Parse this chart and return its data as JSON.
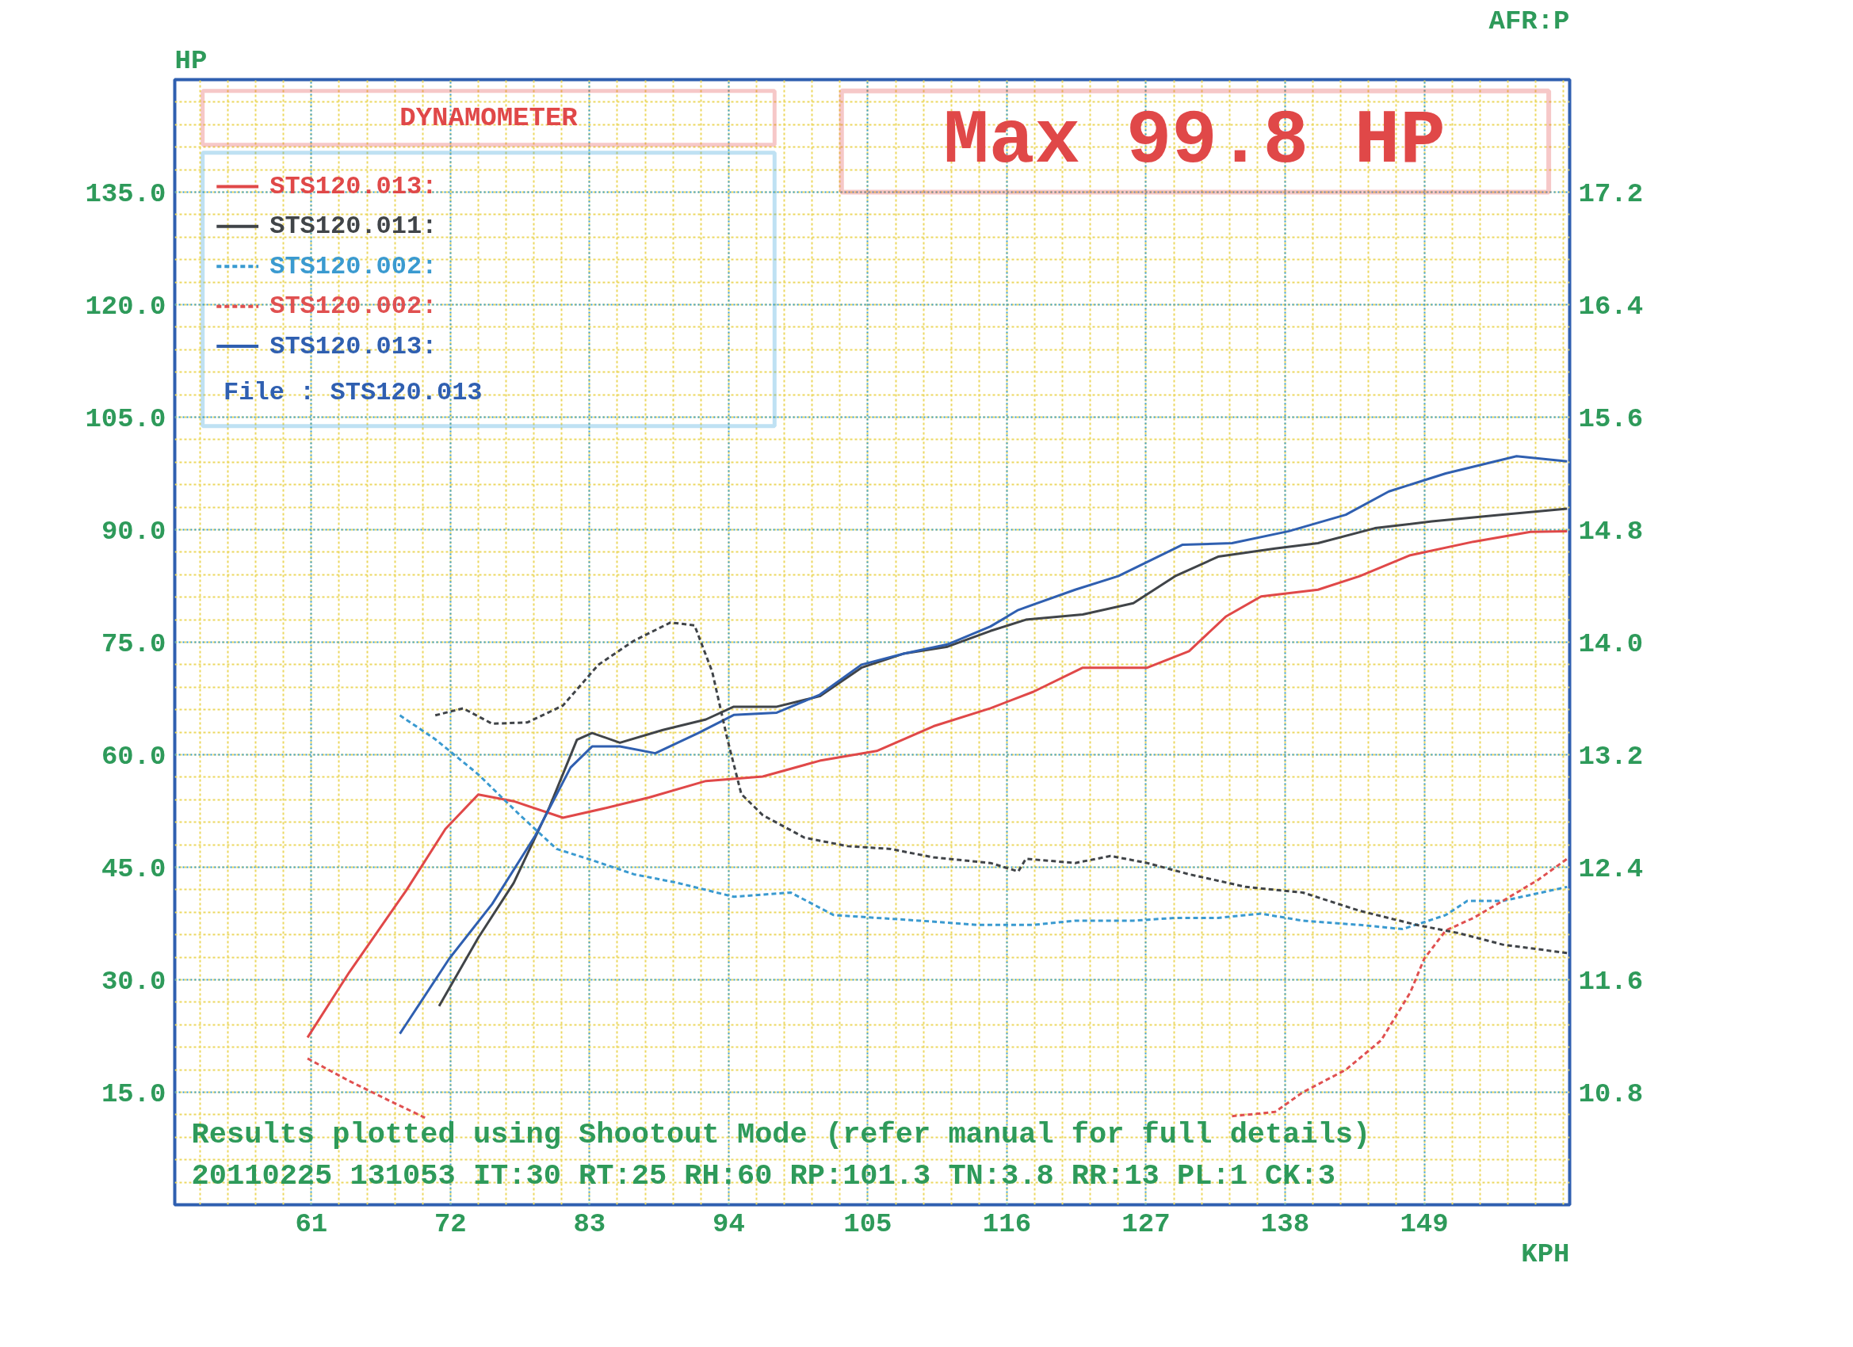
{
  "chart_data": {
    "type": "line",
    "title": "DYNAMOMETER",
    "xlabel": "KPH",
    "ylabel": "HP",
    "y2label": "AFR:P",
    "xlim": [
      50.2,
      160.5
    ],
    "ylim": [
      0,
      150
    ],
    "y2lim": [
      10.0,
      18.0
    ],
    "xticks": [
      61,
      72,
      83,
      94,
      105,
      116,
      127,
      138,
      149
    ],
    "yticks": [
      {
        "value": 15,
        "label": "15.0"
      },
      {
        "value": 30,
        "label": "30.0"
      },
      {
        "value": 45,
        "label": "45.0"
      },
      {
        "value": 60,
        "label": "60.0"
      },
      {
        "value": 75,
        "label": "75.0"
      },
      {
        "value": 90,
        "label": "90.0"
      },
      {
        "value": 105,
        "label": "105.0"
      },
      {
        "value": 120,
        "label": "120.0"
      },
      {
        "value": 135,
        "label": "135.0"
      }
    ],
    "y2ticks": [
      10.8,
      11.6,
      12.4,
      13.2,
      {
        "value": 14.0,
        "label": "14.0"
      },
      14.8,
      15.6,
      16.4,
      17.2
    ],
    "grid": true,
    "legend": "top left",
    "annotations": [
      "Max 99.8 HP",
      "File       : STS120.013",
      "Results plotted using Shootout Mode (refer manual for full details)",
      "20110225 131053 IT:30 RT:25 RH:60 RP:101.3 TN:3.8 RR:13 PL:1 CK:3"
    ],
    "series": [
      {
        "name": "STS120.013:",
        "color": "#e04848",
        "line_style": "solid",
        "x": [
          60.7,
          64.0,
          68.5,
          71.6,
          74.2,
          77.0,
          80.9,
          84.3,
          87.7,
          92.2,
          96.7,
          101.2,
          105.7,
          110.2,
          114.7,
          118.1,
          122.0,
          127.1,
          130.4,
          133.3,
          136.1,
          140.6,
          143.9,
          147.9,
          152.9,
          157.4,
          160.3
        ],
        "values": [
          22.3,
          31.0,
          41.9,
          50.1,
          54.7,
          53.8,
          51.6,
          52.9,
          54.3,
          56.5,
          57.1,
          59.2,
          60.5,
          63.8,
          66.2,
          68.4,
          71.6,
          71.6,
          73.8,
          78.4,
          81.1,
          82.0,
          83.8,
          86.6,
          88.4,
          89.7,
          89.8
        ]
      },
      {
        "name": "STS120.011:",
        "color": "#404448",
        "line_style": "solid",
        "x": [
          71.1,
          74.2,
          77.0,
          79.8,
          82.0,
          83.2,
          85.4,
          88.8,
          92.2,
          94.4,
          97.8,
          101.2,
          104.5,
          107.9,
          111.3,
          114.7,
          117.5,
          122.0,
          126.0,
          129.3,
          132.7,
          137.2,
          140.6,
          145.1,
          149.6,
          155.2,
          160.3
        ],
        "values": [
          26.5,
          35.6,
          42.9,
          52.9,
          62.0,
          62.9,
          61.6,
          63.3,
          64.7,
          66.4,
          66.4,
          67.8,
          71.6,
          73.5,
          74.4,
          76.5,
          78.0,
          78.7,
          80.2,
          83.8,
          86.4,
          87.5,
          88.2,
          90.2,
          91.1,
          92.0,
          92.8
        ]
      },
      {
        "name": "STS120.002:",
        "color": "#3a9ad0",
        "line_style": "dashed",
        "axis": "y2",
        "x": [
          68.0,
          70.8,
          74.2,
          77.5,
          80.4,
          83.2,
          86.5,
          89.9,
          94.4,
          98.9,
          102.3,
          105.7,
          109.1,
          113.6,
          118.1,
          121.4,
          126.0,
          129.3,
          132.7,
          136.1,
          139.4,
          143.9,
          147.3,
          150.7,
          152.4,
          155.2,
          160.3
        ],
        "values": [
          13.48,
          13.31,
          13.06,
          12.77,
          12.53,
          12.45,
          12.35,
          12.29,
          12.19,
          12.22,
          12.06,
          12.04,
          12.02,
          11.99,
          11.99,
          12.02,
          12.02,
          12.04,
          12.04,
          12.07,
          12.02,
          11.99,
          11.96,
          12.06,
          12.16,
          12.16,
          12.26
        ]
      },
      {
        "name": "STS120.002:",
        "color": "#e05050",
        "line_style": "dashed",
        "axis": "y2",
        "x": [
          60.7,
          64.0,
          67.4,
          70.2,
          100.0,
          133.8,
          137.2,
          139.4,
          142.8,
          145.6,
          147.9,
          149.0,
          150.7,
          152.9,
          155.2,
          158.0,
          160.3
        ],
        "values": [
          11.04,
          10.88,
          10.73,
          10.61,
          null,
          10.63,
          10.66,
          10.8,
          10.96,
          11.17,
          11.51,
          11.75,
          11.95,
          12.04,
          12.16,
          12.31,
          12.46
        ]
      },
      {
        "name": "STS120.013:",
        "color": "#2f5fb0",
        "line_style": "solid",
        "x": [
          68.0,
          71.9,
          75.3,
          78.7,
          81.5,
          83.2,
          85.4,
          88.2,
          91.6,
          94.4,
          97.8,
          101.2,
          104.5,
          107.9,
          111.3,
          114.7,
          116.9,
          121.4,
          124.8,
          128.2,
          129.9,
          133.8,
          138.3,
          142.8,
          146.2,
          150.7,
          156.3,
          160.3
        ],
        "values": [
          22.8,
          32.8,
          40.1,
          49.2,
          58.3,
          61.1,
          61.1,
          60.2,
          62.9,
          65.3,
          65.6,
          68.0,
          72.0,
          73.5,
          74.7,
          77.1,
          79.3,
          82.0,
          83.8,
          86.6,
          88.0,
          88.2,
          89.8,
          92.0,
          95.1,
          97.5,
          99.8,
          99.1
        ]
      },
      {
        "color": "#404448",
        "line_style": "dashed",
        "axis": "y2",
        "x": [
          70.8,
          73.0,
          75.3,
          78.1,
          80.9,
          83.7,
          86.5,
          89.4,
          91.3,
          92.7,
          93.9,
          95.0,
          96.7,
          100.0,
          103.4,
          106.8,
          110.2,
          114.7,
          116.9,
          117.5,
          121.4,
          124.2,
          127.1,
          130.4,
          134.9,
          139.4,
          143.9,
          148.4,
          151.8,
          155.2,
          160.3
        ],
        "values": [
          13.48,
          13.53,
          13.42,
          13.43,
          13.55,
          13.84,
          14.01,
          14.14,
          14.12,
          13.79,
          13.31,
          12.92,
          12.77,
          12.61,
          12.55,
          12.53,
          12.47,
          12.43,
          12.37,
          12.46,
          12.43,
          12.48,
          12.43,
          12.35,
          12.26,
          12.22,
          12.09,
          11.99,
          11.93,
          11.85,
          11.79
        ]
      }
    ]
  }
}
